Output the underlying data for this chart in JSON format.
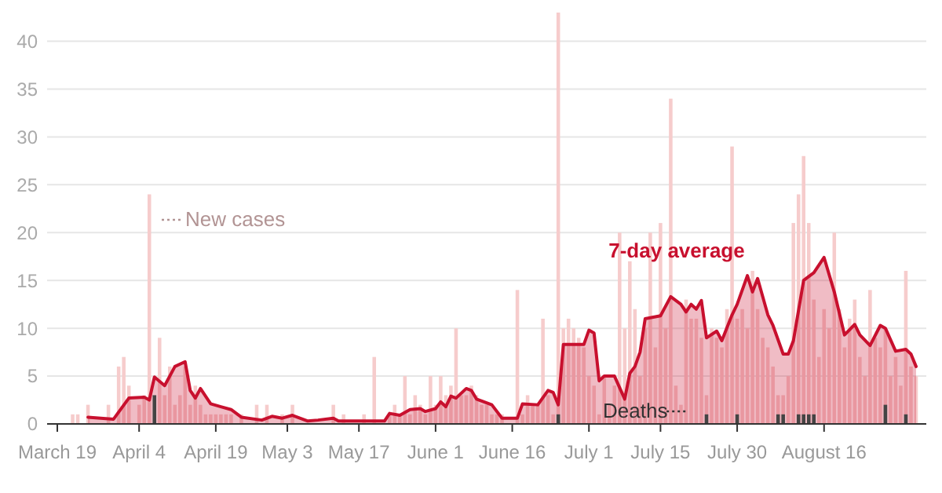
{
  "chart_data": {
    "type": "bar",
    "legend": false,
    "grid": "y",
    "ylim": [
      0,
      43
    ],
    "yticks": [
      0,
      5,
      10,
      15,
      20,
      25,
      30,
      35,
      40
    ],
    "xlim": [
      "--03-17",
      "--09-05"
    ],
    "xticks": [
      {
        "value": "--03-19",
        "label": "March 19"
      },
      {
        "value": "--04-04",
        "label": "April 4"
      },
      {
        "value": "--04-19",
        "label": "April 19"
      },
      {
        "value": "--05-03",
        "label": "May 3"
      },
      {
        "value": "--05-17",
        "label": "May 17"
      },
      {
        "value": "--06-01",
        "label": "June 1"
      },
      {
        "value": "--06-16",
        "label": "June 16"
      },
      {
        "value": "--07-01",
        "label": "July 1"
      },
      {
        "value": "--07-15",
        "label": "July 15"
      },
      {
        "value": "--07-30",
        "label": "July 30"
      },
      {
        "value": "--08-16",
        "label": "August 16"
      }
    ],
    "series": [
      {
        "name": "New cases",
        "color": "#f6cccc",
        "x": [
          "--03-19",
          "--03-20",
          "--03-21",
          "--03-22",
          "--03-23",
          "--03-24",
          "--03-25",
          "--03-26",
          "--03-27",
          "--03-28",
          "--03-29",
          "--03-30",
          "--03-31",
          "--04-01",
          "--04-02",
          "--04-03",
          "--04-04",
          "--04-05",
          "--04-06",
          "--04-07",
          "--04-08",
          "--04-09",
          "--04-10",
          "--04-11",
          "--04-12",
          "--04-13",
          "--04-14",
          "--04-15",
          "--04-16",
          "--04-17",
          "--04-18",
          "--04-19",
          "--04-20",
          "--04-21",
          "--04-22",
          "--04-23",
          "--04-24",
          "--04-25",
          "--04-26",
          "--04-27",
          "--04-28",
          "--04-29",
          "--04-30",
          "--05-01",
          "--05-02",
          "--05-03",
          "--05-04",
          "--05-05",
          "--05-06",
          "--05-07",
          "--05-08",
          "--05-09",
          "--05-10",
          "--05-11",
          "--05-12",
          "--05-13",
          "--05-14",
          "--05-15",
          "--05-16",
          "--05-17",
          "--05-18",
          "--05-19",
          "--05-20",
          "--05-21",
          "--05-22",
          "--05-23",
          "--05-24",
          "--05-25",
          "--05-26",
          "--05-27",
          "--05-28",
          "--05-29",
          "--05-30",
          "--05-31",
          "--06-01",
          "--06-02",
          "--06-03",
          "--06-04",
          "--06-05",
          "--06-06",
          "--06-07",
          "--06-08",
          "--06-09",
          "--06-10",
          "--06-11",
          "--06-12",
          "--06-13",
          "--06-14",
          "--06-15",
          "--06-16",
          "--06-17",
          "--06-18",
          "--06-19",
          "--06-20",
          "--06-21",
          "--06-22",
          "--06-23",
          "--06-24",
          "--06-25",
          "--06-26",
          "--06-27",
          "--06-28",
          "--06-29",
          "--06-30",
          "--07-01",
          "--07-02",
          "--07-03",
          "--07-04",
          "--07-05",
          "--07-06",
          "--07-07",
          "--07-08",
          "--07-09",
          "--07-10",
          "--07-11",
          "--07-12",
          "--07-13",
          "--07-14",
          "--07-15",
          "--07-16",
          "--07-17",
          "--07-18",
          "--07-19",
          "--07-20",
          "--07-21",
          "--07-22",
          "--07-23",
          "--07-24",
          "--07-25",
          "--07-26",
          "--07-27",
          "--07-28",
          "--07-29",
          "--07-30",
          "--07-31",
          "--08-01",
          "--08-02",
          "--08-03",
          "--08-04",
          "--08-05",
          "--08-06",
          "--08-07",
          "--08-08",
          "--08-09",
          "--08-10",
          "--08-11",
          "--08-12",
          "--08-13",
          "--08-14",
          "--08-15",
          "--08-16",
          "--08-17",
          "--08-18",
          "--08-19",
          "--08-20",
          "--08-21",
          "--08-22",
          "--08-23",
          "--08-24",
          "--08-25",
          "--08-26",
          "--08-27",
          "--08-28",
          "--08-29",
          "--08-30",
          "--08-31",
          "--09-01",
          "--09-02",
          "--09-03"
        ],
        "values": [
          0,
          0,
          0,
          1,
          1,
          0,
          2,
          0,
          0,
          0,
          2,
          0,
          6,
          7,
          4,
          0,
          2,
          3,
          24,
          null,
          9,
          3,
          6,
          2,
          3,
          6,
          2,
          4,
          2,
          1,
          1,
          1,
          1,
          1,
          1,
          0,
          1,
          0,
          0,
          2,
          0,
          2,
          0,
          0,
          1,
          0,
          2,
          0,
          0,
          null,
          0,
          null,
          0,
          0,
          2,
          0,
          1,
          0,
          0,
          0,
          1,
          0,
          7,
          0,
          0,
          1,
          2,
          1,
          5,
          1,
          3,
          2,
          1,
          5,
          2,
          5,
          3,
          4,
          10,
          3,
          3,
          4,
          3,
          2,
          2,
          1,
          1,
          1,
          null,
          0,
          14,
          1,
          3,
          2,
          2,
          11,
          3,
          1,
          43,
          10,
          11,
          10,
          9,
          8,
          5,
          4,
          1,
          5,
          2,
          4,
          20,
          10,
          17,
          12,
          5,
          10,
          20,
          8,
          21,
          10,
          34,
          4,
          2,
          13,
          11,
          11,
          9,
          3,
          10,
          9,
          8,
          12,
          29,
          11,
          12,
          10,
          16,
          12,
          9,
          8,
          6,
          3,
          3,
          5,
          21,
          24,
          28,
          21,
          13,
          7,
          12,
          10,
          20,
          12,
          8,
          11,
          13,
          7,
          5,
          14,
          9,
          8,
          10,
          5,
          7,
          4,
          16,
          6,
          5
        ]
      },
      {
        "name": "7-day average",
        "type": "area",
        "color": "#c8102e",
        "x": [
          "--03-25",
          "--03-30",
          "--04-02",
          "--04-05",
          "--04-06",
          "--04-07",
          "--04-09",
          "--04-11",
          "--04-13",
          "--04-14",
          "--04-15",
          "--04-16",
          "--04-18",
          "--04-20",
          "--04-22",
          "--04-24",
          "--04-28",
          "--04-30",
          "--05-02",
          "--05-04",
          "--05-07",
          "--05-09",
          "--05-12",
          "--05-13",
          "--05-22",
          "--05-23",
          "--05-25",
          "--05-27",
          "--05-29",
          "--05-30",
          "--06-01",
          "--06-02",
          "--06-03",
          "--06-04",
          "--06-05",
          "--06-07",
          "--06-08",
          "--06-09",
          "--06-12",
          "--06-14",
          "--06-17",
          "--06-18",
          "--06-21",
          "--06-23",
          "--06-24",
          "--06-25",
          "--06-26",
          "--06-30",
          "--07-01",
          "--07-02",
          "--07-03",
          "--07-04",
          "--07-06",
          "--07-08",
          "--07-09",
          "--07-10",
          "--07-11",
          "--07-12",
          "--07-15",
          "--07-17",
          "--07-19",
          "--07-20",
          "--07-21",
          "--07-22",
          "--07-23",
          "--07-24",
          "--07-26",
          "--07-27",
          "--07-29",
          "--07-30",
          "--08-01",
          "--08-02",
          "--08-03",
          "--08-05",
          "--08-06",
          "--08-08",
          "--08-09",
          "--08-10",
          "--08-12",
          "--08-14",
          "--08-16",
          "--08-18",
          "--08-20",
          "--08-22",
          "--08-23",
          "--08-25",
          "--08-27",
          "--08-28",
          "--08-30",
          "--09-01",
          "--09-02",
          "--09-03"
        ],
        "values": [
          0.7,
          0.5,
          2.7,
          2.8,
          2.5,
          4.9,
          4.0,
          6.0,
          6.5,
          3.5,
          2.7,
          3.7,
          2.1,
          1.8,
          1.5,
          0.7,
          0.4,
          0.8,
          0.6,
          0.9,
          0.3,
          0.4,
          0.6,
          0.3,
          0.3,
          1.1,
          0.9,
          1.5,
          1.6,
          1.3,
          1.6,
          2.3,
          1.8,
          2.9,
          2.7,
          3.7,
          3.5,
          2.6,
          2.0,
          0.6,
          0.6,
          2.1,
          2.0,
          3.5,
          3.3,
          2.0,
          8.3,
          8.3,
          9.8,
          9.5,
          4.5,
          5.0,
          5.0,
          2.6,
          5.3,
          6.0,
          7.5,
          11.0,
          11.3,
          13.3,
          12.5,
          11.7,
          12.5,
          12.0,
          12.9,
          9.0,
          9.7,
          8.7,
          11.4,
          12.5,
          15.5,
          13.8,
          15.2,
          11.4,
          10.3,
          7.3,
          7.3,
          8.7,
          15.0,
          15.8,
          17.4,
          13.8,
          9.3,
          10.4,
          9.3,
          8.2,
          10.3,
          10.0,
          7.6,
          7.8,
          7.3,
          6.0
        ]
      },
      {
        "name": "Deaths",
        "type": "bar",
        "color": "#444444",
        "x": [
          "--04-07",
          "--06-25",
          "--07-24",
          "--07-30",
          "--08-07",
          "--08-08",
          "--08-11",
          "--08-12",
          "--08-13",
          "--08-14",
          "--08-28",
          "--09-01"
        ],
        "values": [
          3,
          1,
          1,
          1,
          1,
          1,
          1,
          1,
          1,
          1,
          2,
          1
        ]
      }
    ]
  }
}
